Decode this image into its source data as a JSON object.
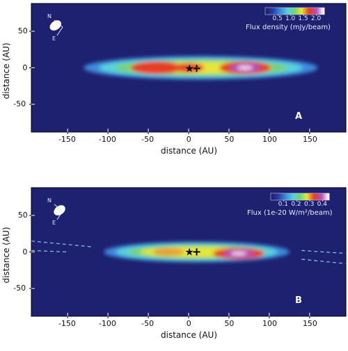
{
  "chart_data": [
    {
      "type": "heatmap",
      "panel_label": "A",
      "xlabel": "distance (AU)",
      "ylabel": "distance (AU)",
      "xlim": [
        -195,
        195
      ],
      "ylim": [
        88,
        -88
      ],
      "xticks": [
        -150,
        -100,
        -50,
        0,
        50,
        100,
        150
      ],
      "yticks": [
        -50,
        0,
        50
      ],
      "colorbar": {
        "label": "Flux density (mJy/beam)",
        "ticks": [
          "0.5",
          "1.0",
          "1.5",
          "2.0"
        ],
        "range": [
          0.0,
          2.3
        ]
      },
      "compass": {
        "north": "N",
        "east": "E"
      },
      "markers": [
        {
          "symbol": "★",
          "x": 1,
          "y": -1
        },
        {
          "symbol": "+",
          "x": 10,
          "y": -1
        }
      ],
      "beam": {
        "x": -165,
        "y": 58,
        "major_au": 13,
        "minor_au": 10,
        "angle_deg": 35
      },
      "disk": {
        "extent_x": [
          -130,
          160
        ],
        "half_width_y": 16,
        "peaks": [
          {
            "x": -40,
            "y": 0,
            "value": 1.7
          },
          {
            "x": 0,
            "y": 0,
            "value": 1.6
          },
          {
            "x": 70,
            "y": 0,
            "value": 2.1
          }
        ]
      }
    },
    {
      "type": "heatmap",
      "panel_label": "B",
      "xlabel": "distance (AU)",
      "ylabel": "distance (AU)",
      "xlim": [
        -195,
        195
      ],
      "ylim": [
        88,
        -88
      ],
      "xticks": [
        -150,
        -100,
        -50,
        0,
        50,
        100,
        150
      ],
      "yticks": [
        -50,
        0,
        50
      ],
      "colorbar": {
        "label": "Flux (1e-20 W/m²/beam)",
        "ticks": [
          "0.1",
          "0.2",
          "0.3",
          "0.4"
        ],
        "range": [
          0.0,
          0.45
        ]
      },
      "compass": {
        "north": "N",
        "east": "E"
      },
      "markers": [
        {
          "symbol": "★",
          "x": 1,
          "y": 0
        },
        {
          "symbol": "+",
          "x": 10,
          "y": 0
        }
      ],
      "beam": {
        "x": -160,
        "y": 57,
        "major_au": 13,
        "minor_au": 10,
        "angle_deg": 35
      },
      "disk": {
        "extent_x": [
          -105,
          125
        ],
        "half_width_y": 14,
        "peaks": [
          {
            "x": -25,
            "y": 0,
            "value": 0.28
          },
          {
            "x": 62,
            "y": -2,
            "value": 0.42
          }
        ]
      },
      "dashed_lines": [
        {
          "x": [
            -195,
            -150
          ],
          "y": [
            2,
            0
          ]
        },
        {
          "x": [
            -195,
            -120
          ],
          "y": [
            15,
            7
          ]
        },
        {
          "x": [
            140,
            195
          ],
          "y": [
            -10,
            -16
          ]
        },
        {
          "x": [
            140,
            195
          ],
          "y": [
            2,
            -2
          ]
        }
      ]
    }
  ]
}
